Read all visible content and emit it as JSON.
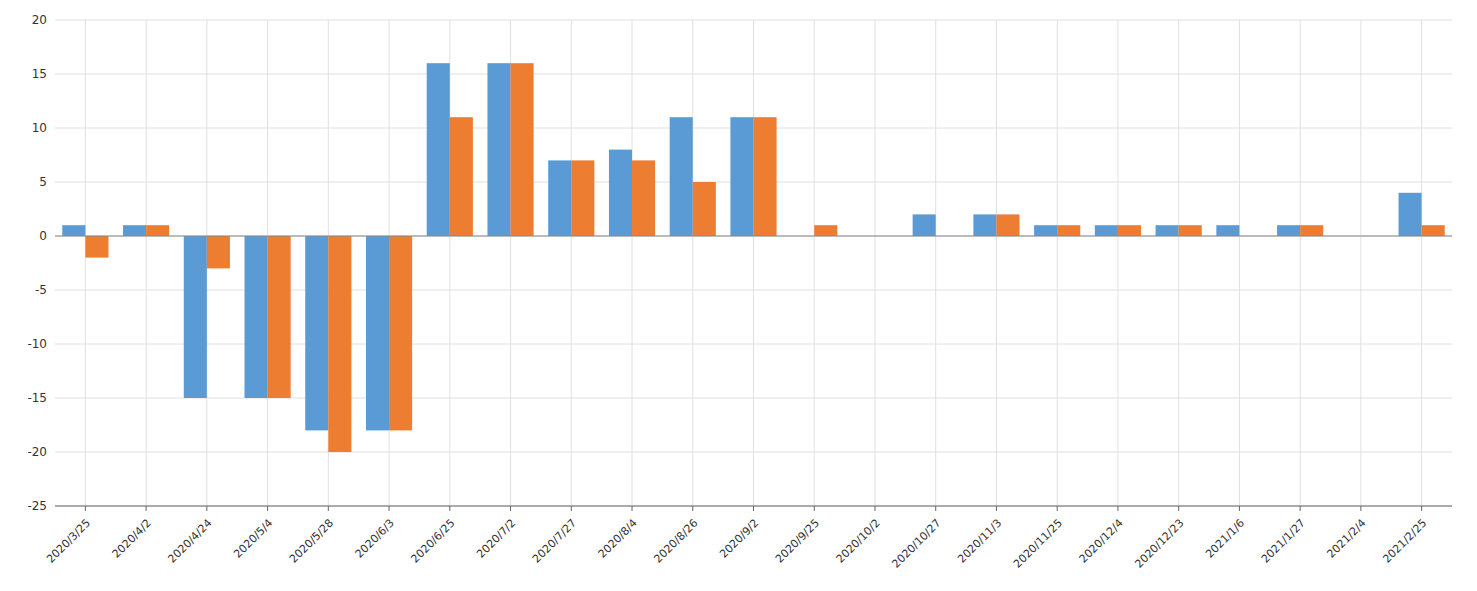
{
  "chart_data": {
    "type": "bar",
    "categories": [
      "2020/3/25",
      "2020/4/2",
      "2020/4/24",
      "2020/5/4",
      "2020/5/28",
      "2020/6/3",
      "2020/6/25",
      "2020/7/2",
      "2020/7/27",
      "2020/8/4",
      "2020/8/26",
      "2020/9/2",
      "2020/9/25",
      "2020/10/2",
      "2020/10/27",
      "2020/11/3",
      "2020/11/25",
      "2020/12/4",
      "2020/12/23",
      "2021/1/6",
      "2021/1/27",
      "2021/2/4",
      "2021/2/25"
    ],
    "series": [
      {
        "color": "#5B9BD5",
        "values": [
          1,
          1,
          -15,
          -15,
          -18,
          -18,
          16,
          16,
          7,
          8,
          11,
          11,
          0,
          0,
          2,
          2,
          1,
          1,
          1,
          1,
          1,
          0,
          4
        ]
      },
      {
        "color": "#ED7D31",
        "values": [
          -2,
          1,
          -3,
          -15,
          -20,
          -18,
          11,
          16,
          7,
          7,
          5,
          11,
          1,
          0,
          0,
          2,
          1,
          1,
          1,
          0,
          1,
          0,
          1
        ]
      }
    ],
    "ylim": [
      -25,
      20
    ],
    "yticks": [
      -25,
      -20,
      -15,
      -10,
      -5,
      0,
      5,
      10,
      15,
      20
    ],
    "grid": true
  }
}
